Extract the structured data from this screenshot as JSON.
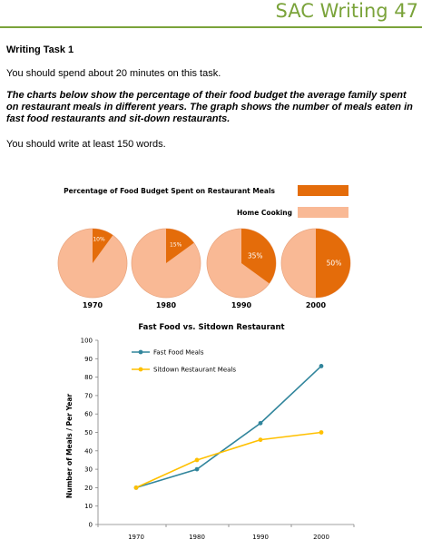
{
  "header": {
    "title": "SAC Writing 47"
  },
  "task": {
    "title": "Writing Task 1",
    "time": "You should spend about 20 minutes on this task.",
    "prompt": "The charts below show the percentage of their food budget the average family spent on restaurant meals in different years. The graph shows the number of meals eaten in fast food restaurants and sit-down restaurants.",
    "words": "You should write at least 150 words."
  },
  "colors": {
    "restaurant": "#e46c0a",
    "home": "#f9b995",
    "fast_food": "#31859c",
    "sitdown": "#ffc000",
    "header": "#7aa33a"
  },
  "chart_data": [
    {
      "type": "pie",
      "title": "Percentage of Food Budget Spent on Restaurant Meals",
      "legend": [
        "Percentage of Food Budget Spent on Restaurant Meals",
        "Home Cooking"
      ],
      "categories": [
        "1970",
        "1980",
        "1990",
        "2000"
      ],
      "restaurant_percent": [
        10,
        15,
        35,
        50
      ],
      "labels": [
        "10%",
        "15%",
        "35%",
        "50%"
      ]
    },
    {
      "type": "line",
      "title": "Fast Food vs. Sitdown Restaurant",
      "xlabel": "",
      "ylabel": "Number of Meals / Per Year",
      "ylim": [
        0,
        100
      ],
      "yticks": [
        0,
        10,
        20,
        30,
        40,
        50,
        60,
        70,
        80,
        90,
        100
      ],
      "categories": [
        "1970",
        "1980",
        "1990",
        "2000"
      ],
      "series": [
        {
          "name": "Fast Food Meals",
          "values": [
            20,
            30,
            55,
            86
          ]
        },
        {
          "name": "Sitdown Restaurant Meals",
          "values": [
            20,
            35,
            46,
            50
          ]
        }
      ],
      "legend_position": "top-left"
    }
  ]
}
